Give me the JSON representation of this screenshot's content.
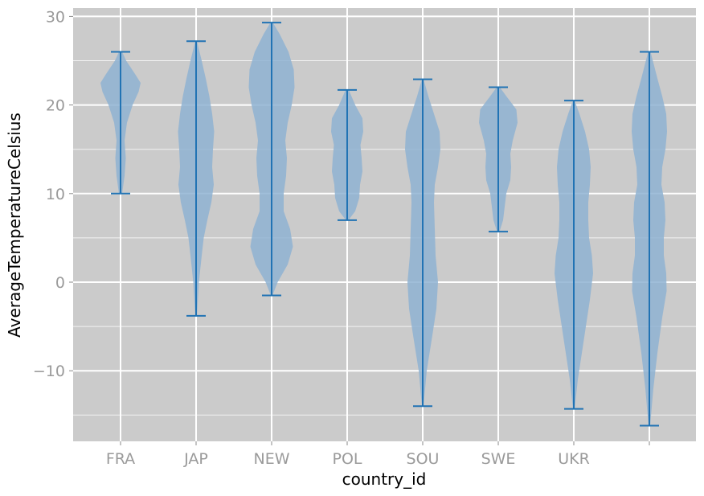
{
  "chart_data": {
    "type": "violin",
    "title": "",
    "xlabel": "country_id",
    "ylabel": "AverageTemperatureCelsius",
    "categories": [
      "FRA",
      "JAP",
      "NEW",
      "POL",
      "SOU",
      "SWE",
      "UKR",
      ""
    ],
    "ylim": [
      -18,
      31
    ],
    "yticks": [
      -10,
      0,
      10,
      20,
      30
    ],
    "grid": true,
    "colors": {
      "background": "#cbcbcb",
      "grid": "#ffffff",
      "violin_fill": "#8fb3d2",
      "violin_line": "#2173b4",
      "tick_text": "#9a9a9a"
    },
    "series": [
      {
        "category": "FRA",
        "min": 10,
        "max": 26,
        "density": [
          [
            10,
            0.04
          ],
          [
            12,
            0.1
          ],
          [
            14,
            0.13
          ],
          [
            16,
            0.1
          ],
          [
            18,
            0.16
          ],
          [
            20,
            0.3
          ],
          [
            21.5,
            0.45
          ],
          [
            22.5,
            0.5
          ],
          [
            23.5,
            0.36
          ],
          [
            25,
            0.14
          ],
          [
            26,
            0.04
          ]
        ]
      },
      {
        "category": "JAP",
        "min": -3.8,
        "max": 27.2,
        "density": [
          [
            -3.8,
            0.02
          ],
          [
            0,
            0.07
          ],
          [
            3,
            0.14
          ],
          [
            5,
            0.19
          ],
          [
            7,
            0.28
          ],
          [
            9,
            0.38
          ],
          [
            11,
            0.44
          ],
          [
            13,
            0.4
          ],
          [
            15,
            0.42
          ],
          [
            17,
            0.45
          ],
          [
            19,
            0.4
          ],
          [
            21,
            0.33
          ],
          [
            23,
            0.24
          ],
          [
            25,
            0.14
          ],
          [
            27.2,
            0.02
          ]
        ]
      },
      {
        "category": "NEW",
        "min": -1.5,
        "max": 29.3,
        "density": [
          [
            -1.5,
            0.02
          ],
          [
            0,
            0.15
          ],
          [
            2,
            0.4
          ],
          [
            4,
            0.53
          ],
          [
            6,
            0.46
          ],
          [
            8,
            0.3
          ],
          [
            10,
            0.3
          ],
          [
            12,
            0.36
          ],
          [
            14,
            0.38
          ],
          [
            16,
            0.34
          ],
          [
            18,
            0.4
          ],
          [
            20,
            0.5
          ],
          [
            22,
            0.57
          ],
          [
            24,
            0.55
          ],
          [
            26,
            0.42
          ],
          [
            28,
            0.2
          ],
          [
            29.3,
            0.03
          ]
        ]
      },
      {
        "category": "POL",
        "min": 7,
        "max": 21.7,
        "density": [
          [
            7,
            0.03
          ],
          [
            8,
            0.2
          ],
          [
            9.5,
            0.3
          ],
          [
            11,
            0.32
          ],
          [
            12.5,
            0.38
          ],
          [
            14,
            0.36
          ],
          [
            15.5,
            0.33
          ],
          [
            17,
            0.4
          ],
          [
            18.5,
            0.38
          ],
          [
            20,
            0.2
          ],
          [
            21.7,
            0.04
          ]
        ]
      },
      {
        "category": "SOU",
        "min": -14,
        "max": 22.9,
        "density": [
          [
            -14,
            0.02
          ],
          [
            -10,
            0.1
          ],
          [
            -6,
            0.24
          ],
          [
            -3,
            0.34
          ],
          [
            0,
            0.38
          ],
          [
            3,
            0.32
          ],
          [
            6,
            0.3
          ],
          [
            9,
            0.28
          ],
          [
            11,
            0.3
          ],
          [
            13,
            0.38
          ],
          [
            15,
            0.44
          ],
          [
            17,
            0.42
          ],
          [
            19,
            0.28
          ],
          [
            21,
            0.14
          ],
          [
            22.9,
            0.02
          ]
        ]
      },
      {
        "category": "SWE",
        "min": 5.7,
        "max": 22,
        "density": [
          [
            5.7,
            0.03
          ],
          [
            7,
            0.12
          ],
          [
            8.5,
            0.16
          ],
          [
            10,
            0.2
          ],
          [
            11.5,
            0.3
          ],
          [
            13,
            0.32
          ],
          [
            14.5,
            0.3
          ],
          [
            16,
            0.36
          ],
          [
            18,
            0.48
          ],
          [
            19.5,
            0.45
          ],
          [
            21,
            0.2
          ],
          [
            22,
            0.04
          ]
        ]
      },
      {
        "category": "UKR",
        "min": -14.3,
        "max": 20.5,
        "density": [
          [
            -14.3,
            0.02
          ],
          [
            -11,
            0.1
          ],
          [
            -8,
            0.2
          ],
          [
            -5,
            0.3
          ],
          [
            -2,
            0.4
          ],
          [
            1,
            0.48
          ],
          [
            3,
            0.45
          ],
          [
            5,
            0.38
          ],
          [
            7,
            0.36
          ],
          [
            9,
            0.36
          ],
          [
            11,
            0.4
          ],
          [
            13,
            0.42
          ],
          [
            15,
            0.38
          ],
          [
            17,
            0.28
          ],
          [
            19,
            0.14
          ],
          [
            20.5,
            0.02
          ]
        ]
      },
      {
        "category": "",
        "min": -16.2,
        "max": 26,
        "density": [
          [
            -16.2,
            0.02
          ],
          [
            -12,
            0.1
          ],
          [
            -8,
            0.2
          ],
          [
            -4,
            0.32
          ],
          [
            -1,
            0.43
          ],
          [
            1,
            0.42
          ],
          [
            3,
            0.36
          ],
          [
            5,
            0.36
          ],
          [
            7,
            0.4
          ],
          [
            9,
            0.38
          ],
          [
            11,
            0.3
          ],
          [
            13,
            0.32
          ],
          [
            15,
            0.4
          ],
          [
            17,
            0.44
          ],
          [
            19,
            0.42
          ],
          [
            21,
            0.32
          ],
          [
            23,
            0.2
          ],
          [
            26,
            0.03
          ]
        ]
      }
    ]
  }
}
